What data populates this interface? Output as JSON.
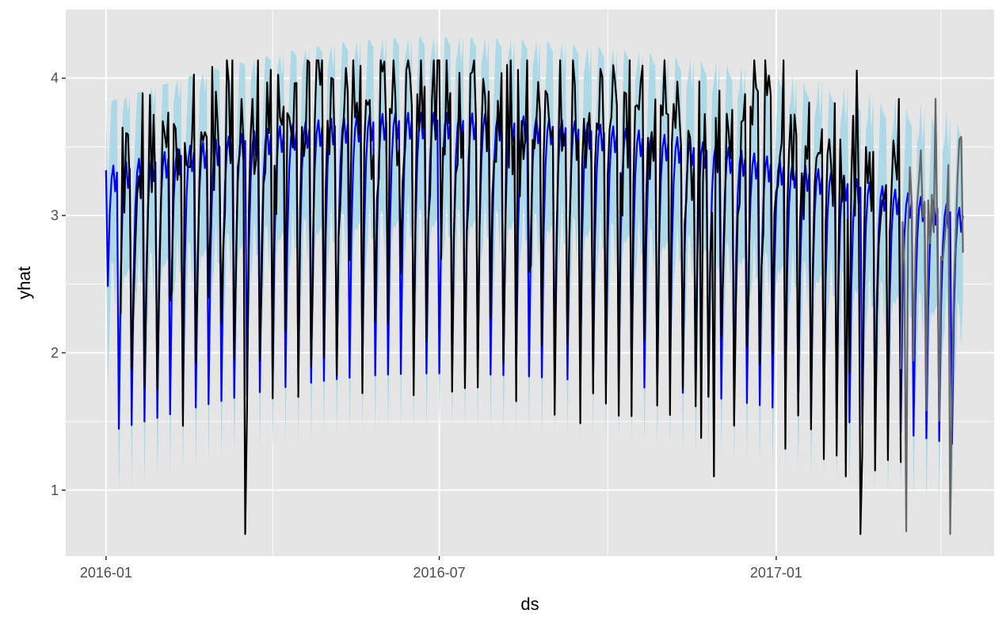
{
  "chart_data": {
    "type": "line",
    "title": "",
    "xlabel": "ds",
    "ylabel": "yhat",
    "x_range": [
      "2015-12-10",
      "2017-04-30"
    ],
    "ylim": [
      0.52,
      4.5
    ],
    "y_ticks": [
      1,
      2,
      3,
      4
    ],
    "x_ticks": [
      {
        "date": "2016-01-01",
        "label": "2016-01"
      },
      {
        "date": "2016-07-01",
        "label": "2016-07"
      },
      {
        "date": "2017-01-01",
        "label": "2017-01"
      }
    ],
    "x_minor_ticks": [
      "2016-04-01",
      "2016-10-01",
      "2017-04-01"
    ],
    "y_minor_ticks": [
      1.5,
      2.5,
      3.5
    ],
    "grid": true,
    "panel_background": "#e5e5e5",
    "grid_color": "#ffffff",
    "legend": "none",
    "series": [
      {
        "role": "uncertainty_band",
        "color": "#add8e6",
        "x_range": [
          "2016-01-01",
          "2017-04-13"
        ],
        "upper_start": 3.82,
        "upper_end": 3.75,
        "upper_peak": 4.3,
        "upper_peak_date": "2016-06-25",
        "lower_start": 0.95,
        "lower_end": 0.85,
        "lower_peak": 1.45,
        "lower_peak_date": "2016-06-25",
        "period_days": 7
      },
      {
        "role": "forecast_yhat",
        "color": "#0000ff",
        "x_range": [
          "2016-01-01",
          "2017-04-13"
        ],
        "start_value": 3.33,
        "end_value": 3.0,
        "weekly_high_start": 3.35,
        "weekly_high_peak": 3.75,
        "weekly_high_end": 3.05,
        "weekly_low_start": 1.42,
        "weekly_low_peak": 1.85,
        "weekly_low_end": 1.32,
        "peak_date": "2016-06-25",
        "period_days": 7
      },
      {
        "role": "observed",
        "color": "#000000",
        "x_range": [
          "2016-01-09",
          "2017-03-10"
        ],
        "min": 0.68,
        "max": 4.13,
        "outliers": [
          {
            "x": "2016-03-17",
            "y": 0.68
          },
          {
            "x": "2016-08-13",
            "y": 1.1
          },
          {
            "x": "2016-11-21",
            "y": 1.38
          },
          {
            "x": "2016-11-28",
            "y": 1.1
          },
          {
            "x": "2017-02-08",
            "y": 1.1
          },
          {
            "x": "2017-02-16",
            "y": 0.68
          },
          {
            "x": "2016-07-01",
            "y": 4.13
          },
          {
            "x": "2016-08-13",
            "y": 4.06
          }
        ]
      },
      {
        "role": "observed_holdout",
        "color": "#666666",
        "x_range": [
          "2017-03-10",
          "2017-04-13"
        ],
        "min": 0.68,
        "max": 3.85,
        "outliers": [
          {
            "x": "2017-03-13",
            "y": 0.7
          },
          {
            "x": "2017-04-06",
            "y": 0.68
          },
          {
            "x": "2017-03-29",
            "y": 3.85
          }
        ]
      }
    ]
  }
}
